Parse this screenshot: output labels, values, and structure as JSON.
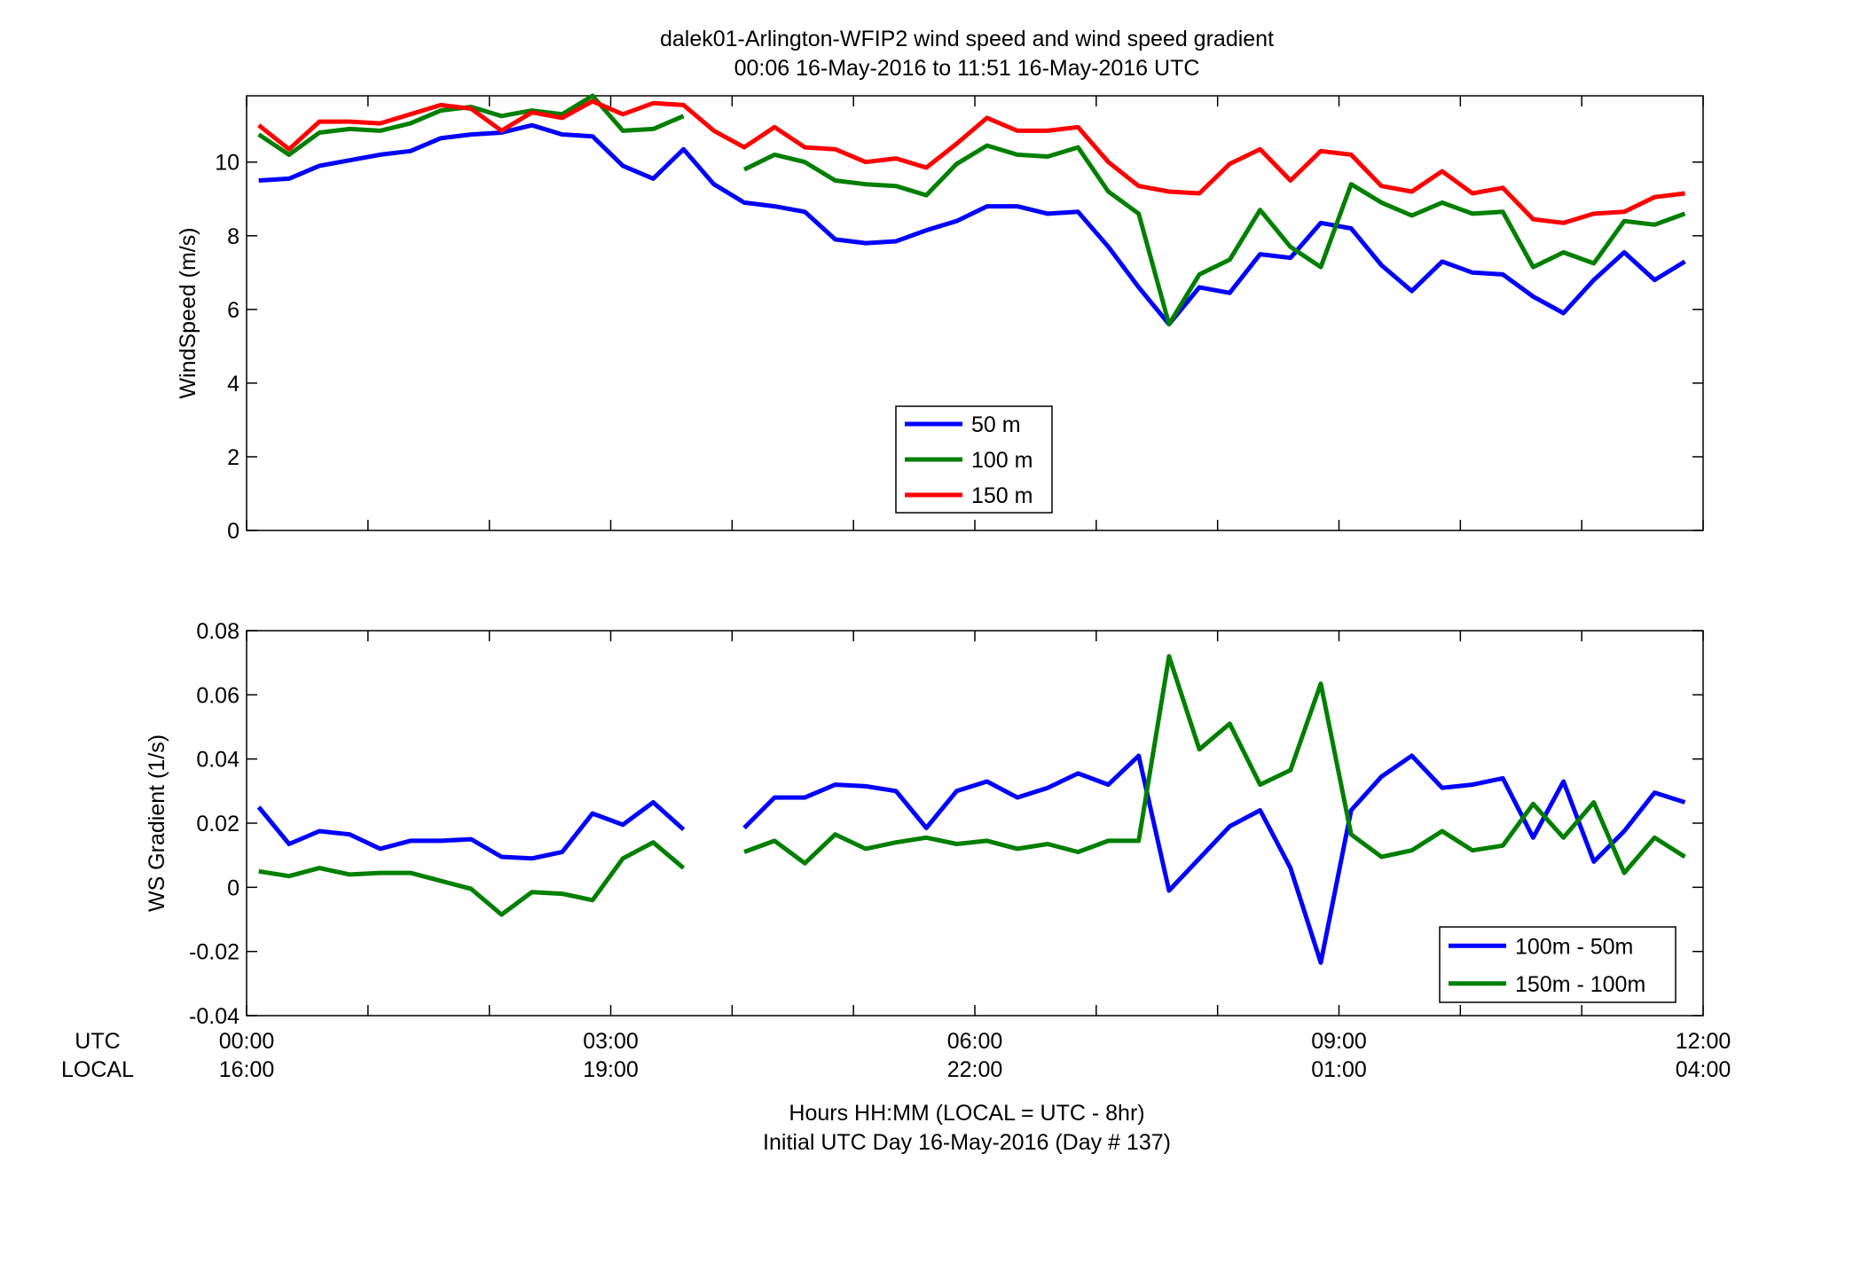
{
  "figure": {
    "title_line1": "dalek01-Arlington-WFIP2  wind speed and wind speed gradient",
    "title_line2": "00:06 16-May-2016 to 11:51 16-May-2016  UTC",
    "footer_line1": "Hours HH:MM  (LOCAL = UTC - 8hr)",
    "footer_line2": "Initial UTC Day 16-May-2016 (Day # 137)",
    "row_label_utc": "UTC",
    "row_label_local": "LOCAL"
  },
  "chart_data": [
    {
      "type": "line",
      "ylabel": "WindSpeed (m/s)",
      "xlim": [
        0,
        12
      ],
      "ylim": [
        0,
        11.8
      ],
      "yticks": [
        0,
        2,
        4,
        6,
        8,
        10
      ],
      "xticks_utc": [
        "00:00",
        "03:00",
        "06:00",
        "09:00",
        "12:00"
      ],
      "xticks_local": [
        "16:00",
        "19:00",
        "22:00",
        "01:00",
        "04:00"
      ],
      "grid": false,
      "legend_position": "center",
      "x": [
        0.1,
        0.35,
        0.6,
        0.85,
        1.1,
        1.35,
        1.6,
        1.85,
        2.1,
        2.35,
        2.6,
        2.85,
        3.1,
        3.35,
        3.6,
        3.85,
        4.1,
        4.35,
        4.6,
        4.85,
        5.1,
        5.35,
        5.6,
        5.85,
        6.1,
        6.35,
        6.6,
        6.85,
        7.1,
        7.35,
        7.6,
        7.85,
        8.1,
        8.35,
        8.6,
        8.85,
        9.1,
        9.35,
        9.6,
        9.85,
        10.1,
        10.35,
        10.6,
        10.85,
        11.1,
        11.35,
        11.6,
        11.85
      ],
      "series": [
        {
          "name": "50 m",
          "color": "#0000ff",
          "values": [
            9.5,
            9.55,
            9.9,
            10.05,
            10.2,
            10.3,
            10.65,
            10.75,
            10.8,
            11.0,
            10.75,
            10.7,
            9.9,
            9.55,
            10.35,
            9.4,
            8.9,
            8.8,
            8.65,
            7.9,
            7.8,
            7.85,
            8.15,
            8.4,
            8.8,
            8.8,
            8.6,
            8.65,
            7.7,
            6.6,
            5.6,
            6.6,
            6.45,
            7.5,
            7.4,
            8.35,
            8.2,
            7.2,
            6.5,
            7.3,
            7.0,
            6.95,
            6.35,
            5.9,
            6.8,
            7.55,
            6.8,
            7.3
          ]
        },
        {
          "name": "100 m",
          "color": "#007f00",
          "values": [
            10.75,
            10.2,
            10.8,
            10.9,
            10.85,
            11.05,
            11.4,
            11.5,
            11.25,
            11.4,
            11.3,
            11.8,
            10.85,
            10.9,
            11.25,
            null,
            9.8,
            10.2,
            10.0,
            9.5,
            9.4,
            9.35,
            9.1,
            9.95,
            10.45,
            10.2,
            10.15,
            10.4,
            9.2,
            8.6,
            5.6,
            6.95,
            7.35,
            8.7,
            7.7,
            7.15,
            9.4,
            8.9,
            8.55,
            8.9,
            8.6,
            8.65,
            7.15,
            7.55,
            7.25,
            8.4,
            8.3,
            8.6
          ]
        },
        {
          "name": "150 m",
          "color": "#ff0000",
          "values": [
            11.0,
            10.35,
            11.1,
            11.1,
            11.05,
            11.3,
            11.55,
            11.45,
            10.85,
            11.35,
            11.2,
            11.65,
            11.3,
            11.6,
            11.55,
            10.85,
            10.4,
            10.95,
            10.4,
            10.35,
            10.0,
            10.1,
            9.85,
            10.5,
            11.2,
            10.85,
            10.85,
            10.95,
            10.0,
            9.35,
            9.2,
            9.15,
            9.95,
            10.35,
            9.5,
            10.3,
            10.2,
            9.35,
            9.2,
            9.75,
            9.15,
            9.3,
            8.45,
            8.35,
            8.6,
            8.65,
            9.05,
            9.15
          ]
        }
      ]
    },
    {
      "type": "line",
      "ylabel": "WS Gradient (1/s)",
      "xlim": [
        0,
        12
      ],
      "ylim": [
        -0.04,
        0.08
      ],
      "yticks": [
        -0.04,
        -0.02,
        0,
        0.02,
        0.04,
        0.06,
        0.08
      ],
      "yticklabels": [
        "-0.04",
        "-0.02",
        "0",
        "0.02",
        "0.04",
        "0.06",
        "0.08"
      ],
      "xticks_utc": [
        "00:00",
        "03:00",
        "06:00",
        "09:00",
        "12:00"
      ],
      "xticks_local": [
        "16:00",
        "19:00",
        "22:00",
        "01:00",
        "04:00"
      ],
      "grid": false,
      "legend_position": "bottom-right",
      "x": [
        0.1,
        0.35,
        0.6,
        0.85,
        1.1,
        1.35,
        1.6,
        1.85,
        2.1,
        2.35,
        2.6,
        2.85,
        3.1,
        3.35,
        3.6,
        3.85,
        4.1,
        4.35,
        4.6,
        4.85,
        5.1,
        5.35,
        5.6,
        5.85,
        6.1,
        6.35,
        6.6,
        6.85,
        7.1,
        7.35,
        7.6,
        7.85,
        8.1,
        8.35,
        8.6,
        8.85,
        9.1,
        9.35,
        9.6,
        9.85,
        10.1,
        10.35,
        10.6,
        10.85,
        11.1,
        11.35,
        11.6,
        11.85
      ],
      "series": [
        {
          "name": "100m - 50m",
          "color": "#0000ff",
          "values": [
            0.025,
            0.0135,
            0.0175,
            0.0165,
            0.012,
            0.0145,
            0.0145,
            0.015,
            0.0095,
            0.009,
            0.011,
            0.023,
            0.0195,
            0.0265,
            0.018,
            null,
            0.0185,
            0.028,
            0.028,
            0.032,
            0.0315,
            0.03,
            0.0185,
            0.03,
            0.033,
            0.028,
            0.031,
            0.0355,
            0.032,
            0.041,
            -0.001,
            0.009,
            0.019,
            0.024,
            0.006,
            -0.0235,
            0.024,
            0.0345,
            0.041,
            0.031,
            0.032,
            0.034,
            0.0155,
            0.033,
            0.008,
            0.0175,
            0.0295,
            0.0265
          ]
        },
        {
          "name": "150m - 100m",
          "color": "#007f00",
          "values": [
            0.005,
            0.0035,
            0.006,
            0.004,
            0.0045,
            0.0045,
            0.002,
            -0.0005,
            -0.0085,
            -0.0015,
            -0.002,
            -0.004,
            0.009,
            0.014,
            0.006,
            null,
            0.011,
            0.0145,
            0.0075,
            0.0165,
            0.012,
            0.014,
            0.0155,
            0.0135,
            0.0145,
            0.012,
            0.0135,
            0.011,
            0.0145,
            0.0145,
            0.072,
            0.043,
            0.051,
            0.032,
            0.0365,
            0.0635,
            0.0165,
            0.0095,
            0.0115,
            0.0175,
            0.0115,
            0.013,
            0.026,
            0.0155,
            0.0265,
            0.0045,
            0.0155,
            0.0095
          ]
        }
      ]
    }
  ]
}
